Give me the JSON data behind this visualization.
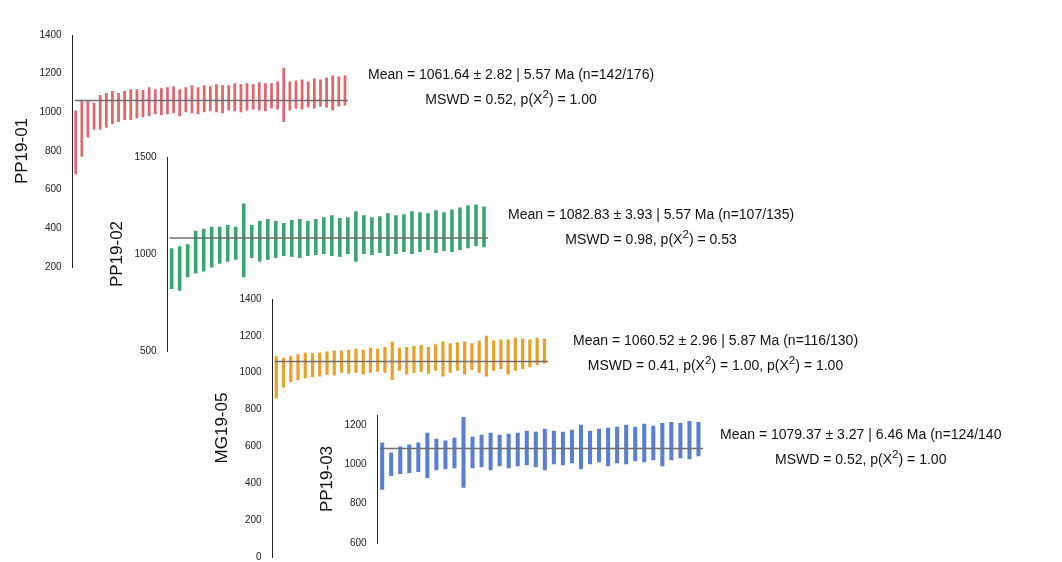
{
  "chart_data": [
    {
      "type": "bar",
      "ylabel": "PP19-01",
      "ylim": [
        200,
        1400
      ],
      "yticks": [
        200,
        400,
        600,
        800,
        1000,
        1200,
        1400
      ],
      "color": "#e0666e",
      "categories": [
        null,
        null,
        null,
        null,
        null,
        null,
        null,
        null,
        null,
        null,
        null,
        null,
        null,
        null,
        null,
        null,
        null,
        null,
        null,
        null,
        null,
        null,
        null,
        null,
        null,
        null,
        null,
        null,
        null,
        null,
        null,
        null,
        null,
        null,
        null,
        null,
        null,
        null,
        null,
        null,
        null,
        null,
        null,
        null,
        null
      ],
      "base": [
        680,
        770,
        870,
        910,
        910,
        920,
        940,
        950,
        960,
        960,
        970,
        975,
        980,
        990,
        985,
        990,
        995,
        980,
        1000,
        995,
        990,
        1000,
        1005,
        1000,
        995,
        1010,
        1005,
        1000,
        1010,
        1015,
        1010,
        1005,
        1020,
        1015,
        950,
        1010,
        1020,
        1015,
        1025,
        1020,
        1030,
        1025,
        1010,
        1030,
        1035
      ],
      "values": [
        330,
        290,
        190,
        140,
        180,
        180,
        170,
        150,
        150,
        160,
        150,
        140,
        150,
        130,
        140,
        140,
        140,
        140,
        130,
        145,
        140,
        140,
        130,
        145,
        145,
        130,
        145,
        145,
        140,
        130,
        145,
        145,
        130,
        145,
        280,
        150,
        145,
        155,
        135,
        155,
        140,
        155,
        180,
        155,
        155
      ],
      "ref_lines": [
        {
          "axis": "y",
          "value": 1061.64,
          "color": "#6e6e6e"
        }
      ],
      "annotations": [
        "Mean = 1061.64 ± 2.82 | 5.57 Ma (n=142/176)",
        "MSWD = 0.52, p(X$^{2}$) = 1.00"
      ]
    },
    {
      "type": "bar",
      "ylabel": "PP19-02",
      "ylim": [
        500,
        1500
      ],
      "yticks": [
        500,
        1000,
        1500
      ],
      "color": "#3aa56a",
      "categories": [
        null,
        null,
        null,
        null,
        null,
        null,
        null,
        null,
        null,
        null,
        null,
        null,
        null,
        null,
        null,
        null,
        null,
        null,
        null,
        null,
        null,
        null,
        null,
        null,
        null,
        null,
        null,
        null,
        null,
        null,
        null,
        null,
        null,
        null,
        null,
        null,
        null,
        null,
        null,
        null
      ],
      "base": [
        820,
        810,
        880,
        900,
        910,
        930,
        950,
        960,
        970,
        880,
        980,
        960,
        970,
        980,
        990,
        985,
        980,
        990,
        995,
        1000,
        990,
        985,
        1000,
        960,
        1000,
        995,
        1005,
        990,
        1000,
        1010,
        1000,
        1010,
        1020,
        1005,
        1015,
        1010,
        1020,
        1030,
        1040,
        1035
      ],
      "values": [
        210,
        230,
        170,
        220,
        220,
        210,
        190,
        190,
        170,
        380,
        170,
        210,
        210,
        190,
        170,
        190,
        200,
        180,
        185,
        190,
        210,
        200,
        190,
        260,
        200,
        195,
        190,
        220,
        200,
        195,
        220,
        205,
        190,
        220,
        200,
        220,
        220,
        220,
        215,
        210
      ],
      "ref_lines": [
        {
          "axis": "y",
          "value": 1082.83,
          "color": "#6e6e6e"
        }
      ],
      "annotations": [
        "Mean = 1082.83 ± 3.93 | 5.57 Ma (n=107/135)",
        "MSWD = 0.98, p(X$^{2}$) = 0.53"
      ]
    },
    {
      "type": "bar",
      "ylabel": "MG19-05",
      "ylim": [
        0,
        1400
      ],
      "yticks": [
        0,
        200,
        400,
        600,
        800,
        1000,
        1200,
        1400
      ],
      "color": "#e8a02e",
      "categories": [
        null,
        null,
        null,
        null,
        null,
        null,
        null,
        null,
        null,
        null,
        null,
        null,
        null,
        null,
        null,
        null,
        null,
        null,
        null,
        null,
        null,
        null,
        null,
        null,
        null,
        null,
        null,
        null,
        null,
        null,
        null,
        null,
        null,
        null,
        null,
        null,
        null,
        null
      ],
      "base": [
        860,
        920,
        950,
        960,
        970,
        975,
        980,
        990,
        985,
        1000,
        995,
        1000,
        990,
        1000,
        1005,
        1000,
        960,
        1010,
        990,
        1000,
        1005,
        995,
        1010,
        980,
        1000,
        1010,
        990,
        1015,
        1000,
        980,
        1010,
        1020,
        990,
        1010,
        1020,
        1030,
        1040,
        1050
      ],
      "values": [
        230,
        160,
        140,
        140,
        140,
        130,
        130,
        125,
        135,
        120,
        130,
        130,
        135,
        135,
        125,
        140,
        210,
        125,
        150,
        145,
        145,
        145,
        145,
        190,
        160,
        155,
        180,
        145,
        175,
        220,
        165,
        160,
        190,
        180,
        165,
        150,
        150,
        135
      ],
      "ref_lines": [
        {
          "axis": "y",
          "value": 1060.52,
          "color": "#6e6e6e"
        }
      ],
      "annotations": [
        "Mean = 1060.52 ± 2.96 | 5.87 Ma (n=116/130)",
        "MSWD = 0.41, p(X$^{2}$) = 1.00, p(X$^{2}$) = 1.00"
      ]
    },
    {
      "type": "bar",
      "ylabel": "PP19-03",
      "ylim": [
        600,
        1250
      ],
      "yticks": [
        600,
        800,
        1000,
        1200
      ],
      "color": "#5a7fd2",
      "categories": [
        null,
        null,
        null,
        null,
        null,
        null,
        null,
        null,
        null,
        null,
        null,
        null,
        null,
        null,
        null,
        null,
        null,
        null,
        null,
        null,
        null,
        null,
        null,
        null,
        null,
        null,
        null,
        null,
        null,
        null,
        null,
        null,
        null,
        null,
        null,
        null
      ],
      "base": [
        870,
        940,
        950,
        955,
        960,
        930,
        970,
        975,
        980,
        880,
        980,
        985,
        970,
        990,
        980,
        990,
        995,
        985,
        970,
        1000,
        995,
        1005,
        975,
        1000,
        1010,
        990,
        1005,
        1000,
        1015,
        1010,
        1020,
        990,
        1020,
        1030,
        1025,
        1040
      ],
      "values": [
        240,
        120,
        140,
        145,
        150,
        230,
        160,
        145,
        155,
        360,
        160,
        165,
        190,
        160,
        175,
        170,
        175,
        180,
        210,
        170,
        170,
        170,
        225,
        170,
        170,
        195,
        185,
        200,
        175,
        195,
        175,
        220,
        195,
        180,
        195,
        175
      ],
      "ref_lines": [
        {
          "axis": "y",
          "value": 1079.37,
          "color": "#6e6e6e"
        }
      ],
      "annotations": [
        "Mean = 1079.37 ± 3.27 | 6.46 Ma (n=124/140",
        "MSWD = 0.52, p(X$^{2}$) = 1.00"
      ]
    }
  ]
}
